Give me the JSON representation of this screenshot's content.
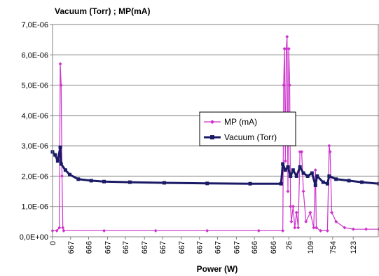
{
  "chart_data": {
    "type": "line",
    "title": "Vacuum (Torr) ; MP(mA)",
    "xlabel": "Power (W)",
    "ylabel": "",
    "ylim": [
      0,
      7e-06
    ],
    "y_ticks": [
      "0,0E+00",
      "1,0E-06",
      "2,0E-06",
      "3,0E-06",
      "4,0E-06",
      "5,0E-06",
      "6,0E-06",
      "7,0E-06"
    ],
    "y_tick_values": [
      0,
      1e-06,
      2e-06,
      3e-06,
      4e-06,
      5e-06,
      6e-06,
      7e-06
    ],
    "x_range": [
      0,
      380
    ],
    "x_tick_labels": [
      "0",
      "667",
      "666",
      "667",
      "667",
      "667",
      "667",
      "667",
      "667",
      "667",
      "667",
      "666",
      "666",
      "26",
      "109",
      "754",
      "123"
    ],
    "x_tick_positions": [
      0,
      21,
      42,
      64,
      85,
      107,
      128,
      150,
      171,
      192,
      214,
      235,
      257,
      275,
      300,
      326,
      350
    ],
    "grid": true,
    "legend_position": "center-right",
    "series": [
      {
        "name": "MP (mA)",
        "color": "#cc33cc",
        "marker": "diamond",
        "points": [
          [
            0,
            2e-07
          ],
          [
            5,
            2e-07
          ],
          [
            8,
            3e-07
          ],
          [
            9,
            5.7e-06
          ],
          [
            10,
            5e-06
          ],
          [
            11,
            2e-06
          ],
          [
            12,
            3e-07
          ],
          [
            13,
            2e-07
          ],
          [
            60,
            2e-07
          ],
          [
            120,
            2e-07
          ],
          [
            180,
            2e-07
          ],
          [
            240,
            2e-07
          ],
          [
            268,
            2e-07
          ],
          [
            269,
            5e-06
          ],
          [
            270,
            6.2e-06
          ],
          [
            271,
            2.5e-06
          ],
          [
            272,
            6.2e-06
          ],
          [
            273,
            6.6e-06
          ],
          [
            274,
            1.5e-06
          ],
          [
            275,
            6.2e-06
          ],
          [
            276,
            5e-06
          ],
          [
            277,
            1e-06
          ],
          [
            278,
            5e-07
          ],
          [
            280,
            1e-06
          ],
          [
            282,
            3e-07
          ],
          [
            284,
            8e-07
          ],
          [
            286,
            3e-07
          ],
          [
            288,
            2.8e-06
          ],
          [
            290,
            2.8e-06
          ],
          [
            292,
            1.5e-06
          ],
          [
            295,
            5e-07
          ],
          [
            300,
            8e-07
          ],
          [
            304,
            3e-07
          ],
          [
            306,
            2.2e-06
          ],
          [
            307,
            3e-07
          ],
          [
            312,
            2e-07
          ],
          [
            320,
            2e-07
          ],
          [
            322,
            3e-06
          ],
          [
            323,
            2.8e-06
          ],
          [
            325,
            8e-07
          ],
          [
            330,
            5e-07
          ],
          [
            340,
            3e-07
          ],
          [
            350,
            2.5e-07
          ],
          [
            365,
            2.5e-07
          ],
          [
            380,
            2.5e-07
          ]
        ]
      },
      {
        "name": "Vacuum (Torr)",
        "color": "#1a1a66",
        "marker": "square",
        "points": [
          [
            0,
            2.8e-06
          ],
          [
            3,
            2.7e-06
          ],
          [
            6,
            2.5e-06
          ],
          [
            9,
            2.95e-06
          ],
          [
            10,
            2.4e-06
          ],
          [
            15,
            2.2e-06
          ],
          [
            20,
            2.05e-06
          ],
          [
            30,
            1.9e-06
          ],
          [
            45,
            1.85e-06
          ],
          [
            60,
            1.82e-06
          ],
          [
            90,
            1.8e-06
          ],
          [
            130,
            1.78e-06
          ],
          [
            180,
            1.76e-06
          ],
          [
            230,
            1.75e-06
          ],
          [
            266,
            1.75e-06
          ],
          [
            268,
            2.4e-06
          ],
          [
            271,
            2.2e-06
          ],
          [
            274,
            2.3e-06
          ],
          [
            277,
            2e-06
          ],
          [
            280,
            2.2e-06
          ],
          [
            284,
            2e-06
          ],
          [
            288,
            2.3e-06
          ],
          [
            292,
            2.1e-06
          ],
          [
            297,
            2e-06
          ],
          [
            302,
            2.1e-06
          ],
          [
            306,
            1.7e-06
          ],
          [
            308,
            2e-06
          ],
          [
            315,
            1.8e-06
          ],
          [
            320,
            1.75e-06
          ],
          [
            322,
            2e-06
          ],
          [
            330,
            1.9e-06
          ],
          [
            345,
            1.85e-06
          ],
          [
            360,
            1.8e-06
          ],
          [
            380,
            1.75e-06
          ]
        ]
      }
    ]
  }
}
